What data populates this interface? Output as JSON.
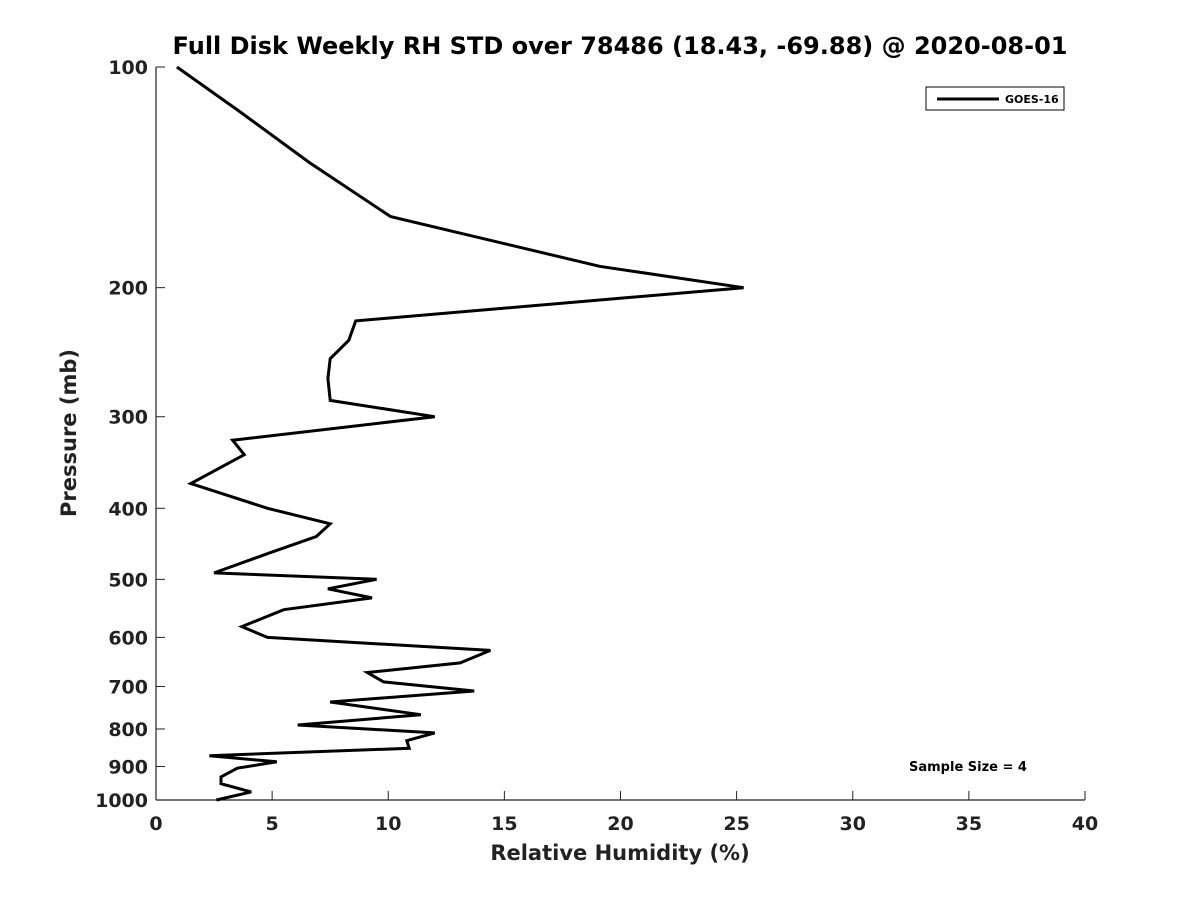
{
  "chart_data": {
    "type": "line",
    "title": "Full Disk Weekly RH STD over 78486 (18.43, -69.88) @ 2020-08-01",
    "xlabel": "Relative Humidity (%)",
    "ylabel": "Pressure (mb)",
    "xlim": [
      0,
      40
    ],
    "ylim": [
      100,
      1000
    ],
    "yscale": "log",
    "y_reversed": true,
    "xticks": [
      0,
      5,
      10,
      15,
      20,
      25,
      30,
      35,
      40
    ],
    "xtick_labels": [
      "0",
      "5",
      "10",
      "15",
      "20",
      "25",
      "30",
      "35",
      "40"
    ],
    "yticks": [
      100,
      200,
      300,
      400,
      500,
      600,
      700,
      800,
      900,
      1000
    ],
    "ytick_labels": [
      "100",
      "200",
      "300",
      "400",
      "500",
      "600",
      "700",
      "800",
      "900",
      "1000"
    ],
    "grid": false,
    "legend_position": "top-right",
    "series": [
      {
        "name": "GOES-16",
        "color": "#000000",
        "x": [
          0.9,
          3.6,
          6.6,
          10.1,
          19.1,
          25.3,
          8.6,
          8.3,
          7.5,
          7.4,
          7.5,
          12.0,
          3.3,
          3.8,
          1.5,
          4.8,
          7.5,
          6.9,
          4.9,
          2.5,
          9.5,
          7.4,
          9.3,
          5.5,
          3.7,
          4.8,
          14.4,
          13.1,
          9.1,
          9.8,
          13.7,
          7.5,
          11.4,
          6.1,
          12.0,
          10.8,
          10.9,
          2.3,
          5.2,
          3.5,
          2.8,
          2.8,
          4.1,
          2.6
        ],
        "y": [
          100,
          115,
          135,
          160,
          187,
          200,
          222,
          236,
          250,
          266,
          285,
          300,
          323,
          338,
          370,
          400,
          420,
          437,
          460,
          490,
          500,
          515,
          530,
          550,
          580,
          600,
          625,
          650,
          670,
          690,
          710,
          735,
          765,
          790,
          810,
          830,
          850,
          870,
          887,
          905,
          930,
          950,
          975,
          1000
        ]
      }
    ],
    "annotations": [
      {
        "text": "Sample Size = 4"
      }
    ]
  }
}
